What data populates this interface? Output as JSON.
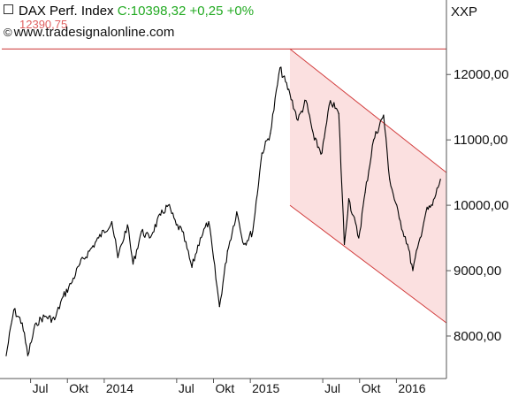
{
  "header": {
    "index_name": "DAX Perf. Index",
    "close_text": "C:10398,32 +0,25 +0%",
    "watermark": "www.tradesignalonline.com",
    "ref_value_label": "12390,75",
    "scale_label": "XXP"
  },
  "chart_data": {
    "type": "line",
    "title": "DAX Perf. Index",
    "series": [
      {
        "name": "DAX Perf. Index",
        "x": [
          "2013-05-01",
          "2013-05-20",
          "2013-06-10",
          "2013-06-24",
          "2013-07-15",
          "2013-08-05",
          "2013-08-30",
          "2013-09-20",
          "2013-10-10",
          "2013-11-01",
          "2013-11-25",
          "2013-12-18",
          "2014-01-20",
          "2014-02-04",
          "2014-02-28",
          "2014-03-14",
          "2014-04-04",
          "2014-04-24",
          "2014-05-22",
          "2014-06-10",
          "2014-06-30",
          "2014-07-15",
          "2014-08-08",
          "2014-08-29",
          "2014-09-19",
          "2014-10-16",
          "2014-11-05",
          "2014-11-28",
          "2014-12-16",
          "2015-01-07",
          "2015-01-30",
          "2015-02-20",
          "2015-03-16",
          "2015-04-10",
          "2015-04-30",
          "2015-05-20",
          "2015-06-10",
          "2015-06-29",
          "2015-07-20",
          "2015-08-10",
          "2015-08-24",
          "2015-09-04",
          "2015-09-29",
          "2015-10-15",
          "2015-11-05",
          "2015-11-30",
          "2015-12-15",
          "2016-01-08",
          "2016-01-29",
          "2016-02-11",
          "2016-02-29",
          "2016-03-15",
          "2016-03-31",
          "2016-04-20"
        ],
        "y": [
          7700,
          8400,
          8200,
          7700,
          8200,
          8300,
          8250,
          8600,
          8800,
          9100,
          9300,
          9500,
          9750,
          9200,
          9700,
          9100,
          9600,
          9500,
          9850,
          10000,
          9700,
          9600,
          9050,
          9500,
          9750,
          8450,
          9300,
          9900,
          9400,
          9600,
          10800,
          11100,
          12100,
          11700,
          11300,
          11600,
          11000,
          10800,
          11600,
          11400,
          9400,
          10100,
          9500,
          10200,
          11000,
          11380,
          10400,
          9800,
          9400,
          9000,
          9500,
          9900,
          10000,
          10398
        ]
      }
    ],
    "reference_line": 12390.75,
    "channel": {
      "upper": [
        [
          "2015-04-10",
          12390.75
        ],
        [
          "2016-05-05",
          10500
        ]
      ],
      "lower": [
        [
          "2015-04-10",
          10000
        ],
        [
          "2016-05-05",
          8200
        ]
      ]
    },
    "y_ticks": [
      "8000,00",
      "9000,00",
      "10000,00",
      "11000,00",
      "12000,00"
    ],
    "y_tick_values": [
      8000,
      9000,
      10000,
      11000,
      12000
    ],
    "x_ticks": [
      {
        "label": "Jul",
        "date": "2013-07-01"
      },
      {
        "label": "Okt",
        "date": "2013-10-01"
      },
      {
        "label": "2014",
        "date": "2014-01-01"
      },
      {
        "label": "Jul",
        "date": "2014-07-01"
      },
      {
        "label": "Okt",
        "date": "2014-10-01"
      },
      {
        "label": "2015",
        "date": "2015-01-01"
      },
      {
        "label": "Jul",
        "date": "2015-07-01"
      },
      {
        "label": "Okt",
        "date": "2015-10-01"
      },
      {
        "label": "2016",
        "date": "2016-01-01"
      }
    ],
    "xlim": [
      "2013-04-20",
      "2016-05-05"
    ],
    "ylim": [
      7350,
      12950
    ],
    "grid": false,
    "colors": {
      "price": "#000000",
      "reference_line": "#cc3333",
      "channel_fill": "#fbe0e0",
      "channel_edge": "#d23c3c",
      "axis": "#555555"
    }
  }
}
